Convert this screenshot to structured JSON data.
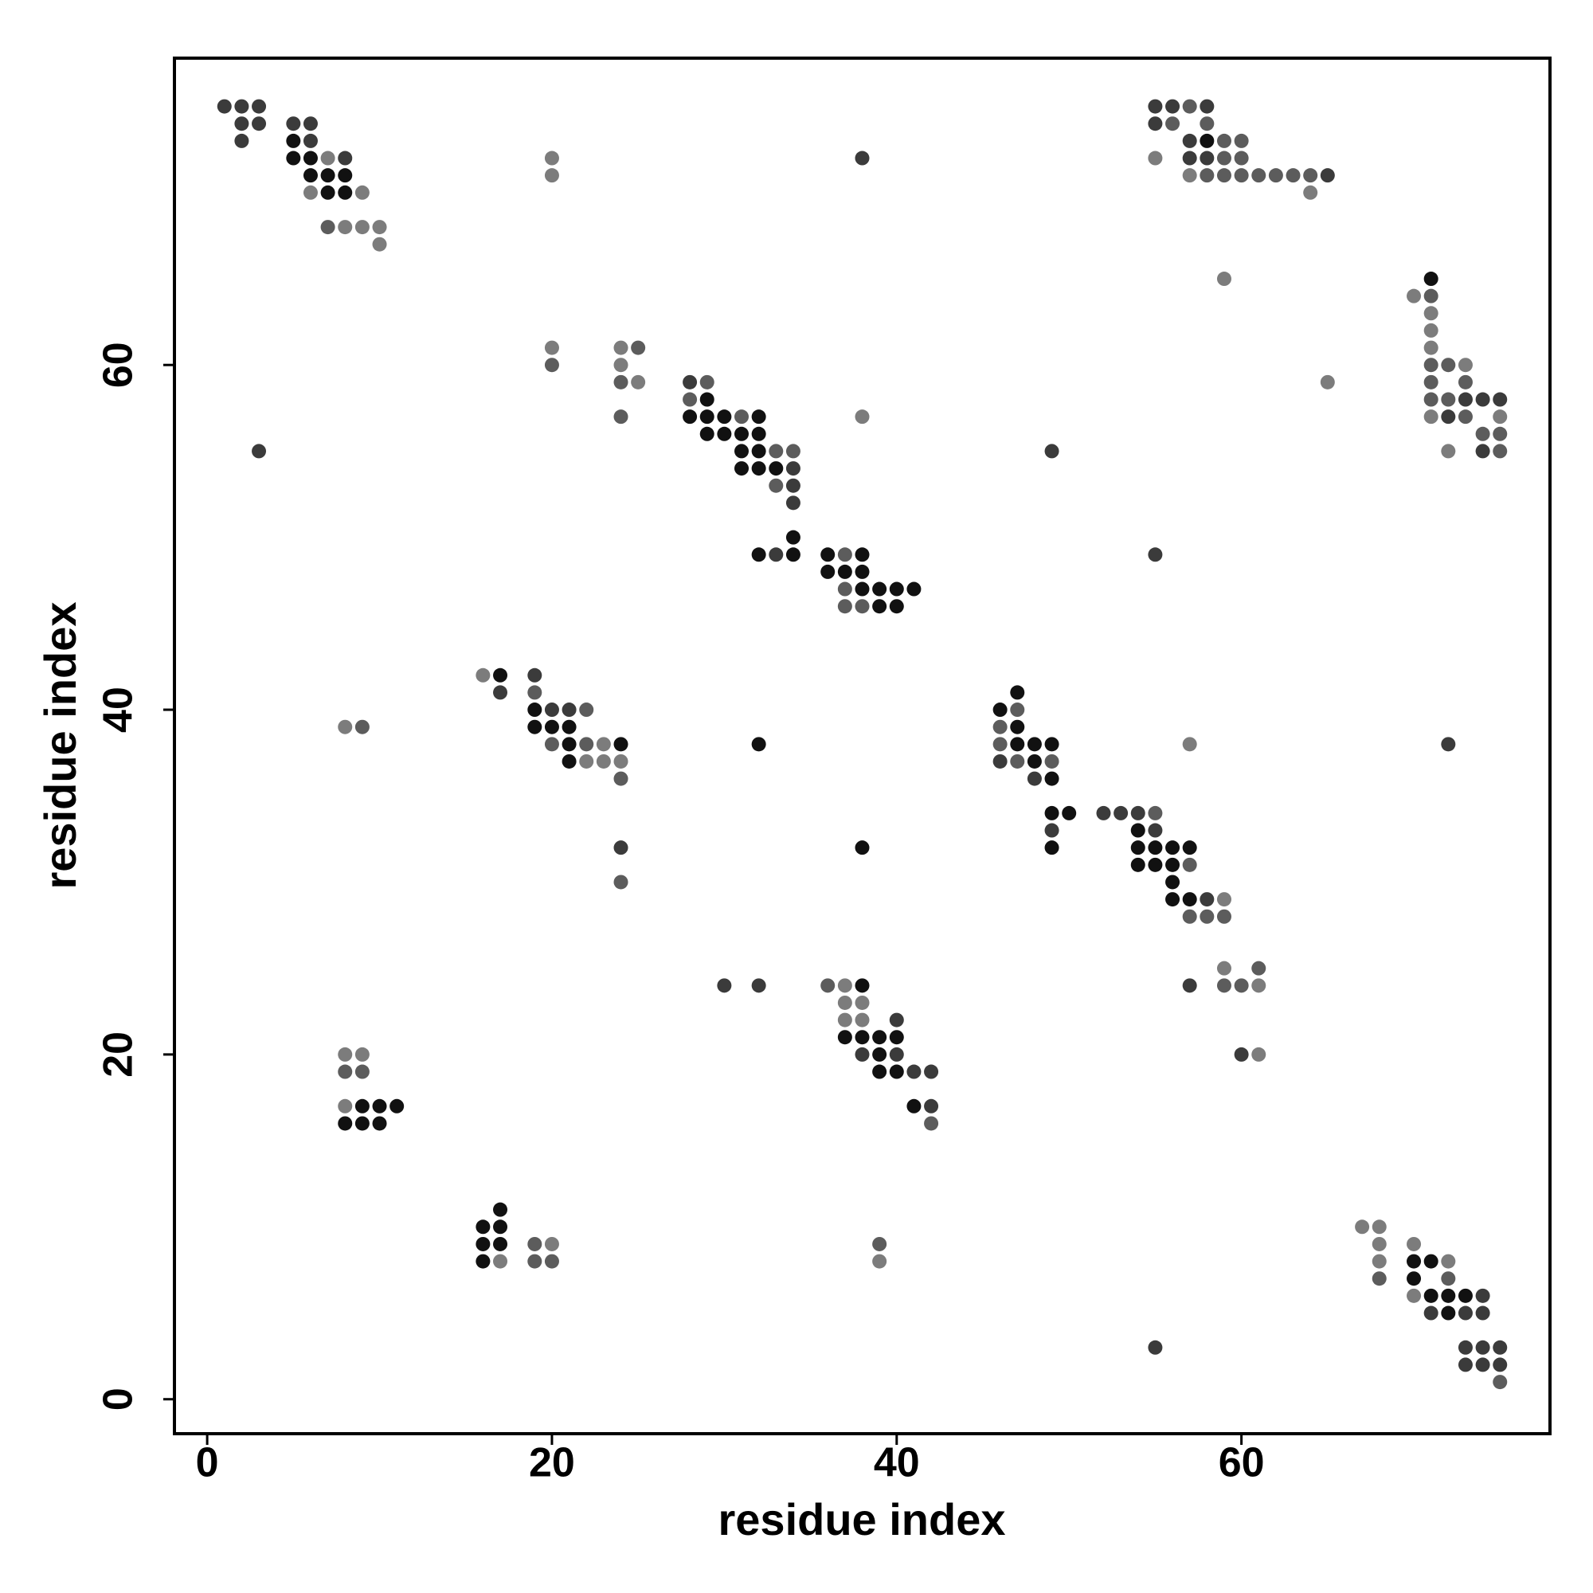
{
  "chart_data": {
    "type": "scatter",
    "x_label": "residue index",
    "y_label": "residue index",
    "xlim": [
      -1.9,
      77.9
    ],
    "ylim": [
      -2,
      77.8
    ],
    "xticks": [
      0,
      20,
      40,
      60
    ],
    "yticks": [
      0,
      20,
      40,
      60
    ],
    "series": [
      {
        "color": "#111111",
        "x": [
          5,
          58,
          5,
          6,
          6,
          7,
          8,
          7,
          8,
          71,
          29,
          28,
          29,
          30,
          32,
          29,
          30,
          31,
          32,
          31,
          32,
          31,
          32,
          33,
          34,
          32,
          34,
          36,
          38,
          36,
          37,
          38,
          38,
          39,
          40,
          41,
          39,
          40,
          17,
          47,
          19,
          46,
          19,
          20,
          21,
          47,
          21,
          24,
          32,
          47,
          48,
          49,
          21,
          48,
          49,
          49,
          50,
          54,
          38,
          49,
          54,
          55,
          56,
          57,
          54,
          55,
          56,
          56,
          56,
          57,
          38,
          37,
          38,
          39,
          40,
          39,
          39,
          40,
          9,
          10,
          11,
          41,
          8,
          9,
          10,
          17,
          16,
          17,
          16,
          17,
          16,
          70,
          71,
          70,
          71,
          72,
          73,
          72
        ],
        "y": [
          73,
          73,
          72,
          72,
          71,
          71,
          71,
          70,
          70,
          65,
          58,
          57,
          57,
          57,
          57,
          56,
          56,
          56,
          56,
          55,
          55,
          54,
          54,
          54,
          50,
          49,
          49,
          49,
          49,
          48,
          48,
          48,
          47,
          47,
          47,
          47,
          46,
          46,
          42,
          41,
          40,
          40,
          39,
          39,
          39,
          39,
          38,
          38,
          38,
          38,
          38,
          38,
          37,
          37,
          36,
          34,
          34,
          33,
          32,
          32,
          32,
          32,
          32,
          32,
          31,
          31,
          31,
          30,
          29,
          29,
          24,
          21,
          21,
          21,
          21,
          20,
          19,
          19,
          17,
          17,
          17,
          17,
          16,
          16,
          16,
          11,
          10,
          10,
          9,
          9,
          8,
          8,
          8,
          7,
          6,
          6,
          6,
          5
        ]
      },
      {
        "color": "#3b3b3b",
        "x": [
          1,
          2,
          3,
          55,
          56,
          58,
          2,
          3,
          5,
          6,
          55,
          2,
          6,
          57,
          8,
          38,
          57,
          58,
          65,
          28,
          73,
          74,
          75,
          72,
          3,
          49,
          74,
          34,
          34,
          34,
          33,
          55,
          19,
          17,
          20,
          21,
          72,
          46,
          48,
          52,
          53,
          54,
          49,
          55,
          24,
          58,
          30,
          32,
          57,
          40,
          38,
          40,
          60,
          41,
          42,
          42,
          74,
          71,
          73,
          74,
          55,
          73,
          74,
          75,
          73,
          74,
          75
        ],
        "y": [
          75,
          75,
          75,
          75,
          75,
          75,
          74,
          74,
          74,
          74,
          74,
          73,
          73,
          73,
          72,
          72,
          72,
          72,
          71,
          59,
          58,
          58,
          58,
          57,
          55,
          55,
          55,
          54,
          53,
          52,
          49,
          49,
          42,
          41,
          40,
          40,
          38,
          37,
          36,
          34,
          34,
          34,
          33,
          33,
          32,
          29,
          24,
          24,
          24,
          22,
          20,
          20,
          20,
          19,
          19,
          17,
          6,
          5,
          5,
          5,
          3,
          3,
          3,
          3,
          2,
          2,
          2
        ]
      },
      {
        "color": "#5c5c5c",
        "x": [
          57,
          56,
          58,
          59,
          60,
          59,
          60,
          58,
          59,
          60,
          61,
          62,
          63,
          64,
          7,
          71,
          25,
          20,
          71,
          72,
          24,
          29,
          71,
          73,
          28,
          71,
          72,
          24,
          31,
          73,
          74,
          75,
          33,
          34,
          75,
          33,
          37,
          37,
          37,
          38,
          19,
          22,
          47,
          9,
          46,
          20,
          22,
          46,
          47,
          49,
          24,
          55,
          57,
          24,
          57,
          58,
          59,
          61,
          36,
          59,
          60,
          8,
          9,
          42,
          19,
          39,
          19,
          20,
          68,
          72,
          75
        ],
        "y": [
          75,
          74,
          74,
          73,
          73,
          72,
          72,
          71,
          71,
          71,
          71,
          71,
          71,
          71,
          68,
          64,
          61,
          60,
          60,
          60,
          59,
          59,
          59,
          59,
          58,
          58,
          58,
          57,
          57,
          57,
          56,
          56,
          55,
          55,
          55,
          53,
          49,
          47,
          46,
          46,
          41,
          40,
          40,
          39,
          39,
          38,
          38,
          38,
          37,
          37,
          36,
          34,
          31,
          30,
          28,
          28,
          28,
          25,
          24,
          24,
          24,
          19,
          19,
          16,
          9,
          9,
          8,
          8,
          7,
          7,
          1
        ]
      },
      {
        "color": "#7c7c7c",
        "x": [
          7,
          20,
          55,
          20,
          57,
          6,
          9,
          64,
          8,
          9,
          10,
          10,
          59,
          70,
          71,
          71,
          20,
          24,
          71,
          24,
          73,
          25,
          65,
          38,
          71,
          75,
          72,
          16,
          8,
          23,
          57,
          22,
          23,
          24,
          59,
          59,
          37,
          61,
          37,
          38,
          37,
          38,
          8,
          9,
          61,
          8,
          67,
          68,
          20,
          68,
          70,
          17,
          39,
          68,
          72,
          70
        ],
        "y": [
          72,
          72,
          72,
          71,
          71,
          70,
          70,
          70,
          68,
          68,
          68,
          67,
          65,
          64,
          63,
          62,
          61,
          61,
          61,
          60,
          60,
          59,
          59,
          57,
          57,
          57,
          55,
          42,
          39,
          38,
          38,
          37,
          37,
          37,
          29,
          25,
          24,
          24,
          23,
          23,
          22,
          22,
          20,
          20,
          20,
          17,
          10,
          10,
          9,
          9,
          9,
          8,
          8,
          8,
          8,
          6
        ]
      }
    ]
  }
}
